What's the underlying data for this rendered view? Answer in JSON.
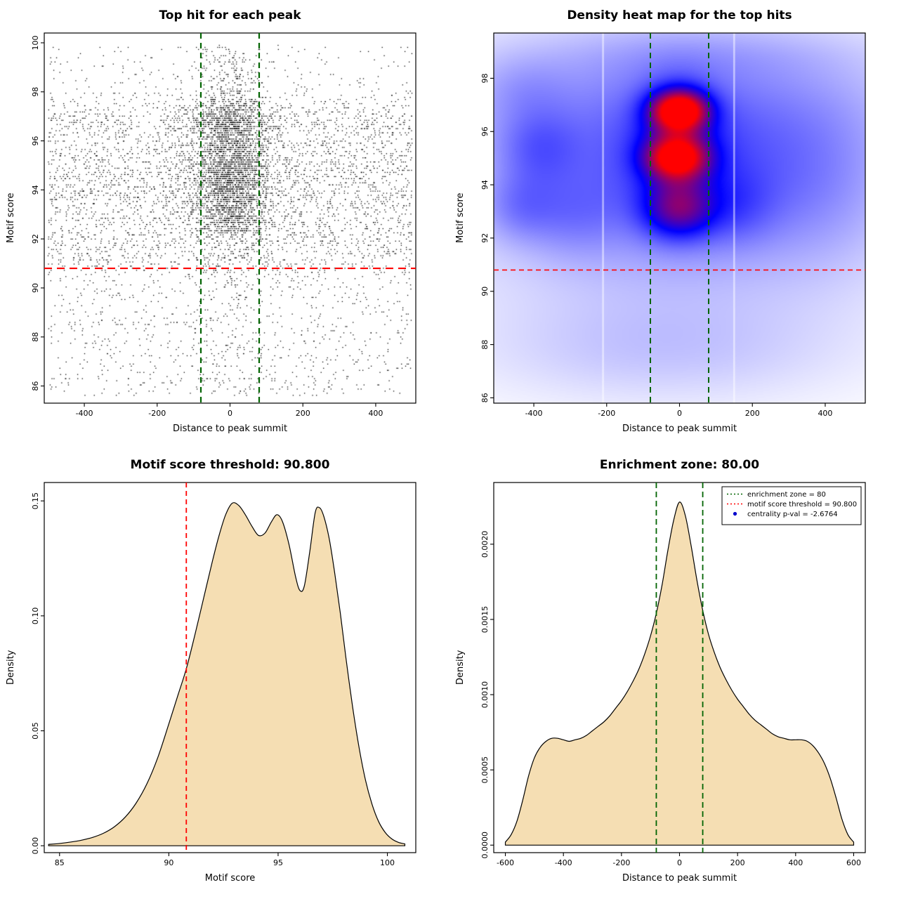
{
  "figure": {
    "background": "#FFFFFF"
  },
  "colors": {
    "threshold_red": "#FF0000",
    "zone_green": "#006400",
    "density_fill": "#F5DEB3",
    "point_black": "#000000",
    "pval_blue": "#0000CC"
  },
  "chart_data": [
    {
      "type": "scatter",
      "title": "Top hit for each peak",
      "xlabel": "Distance to peak summit",
      "ylabel": "Motif score",
      "xlim": [
        -510,
        510
      ],
      "ylim": [
        85.3,
        100.4
      ],
      "xticks": [
        -400,
        -200,
        0,
        200,
        400
      ],
      "xtick_labels": [
        "-400",
        "-200",
        "0",
        "200",
        "400"
      ],
      "yticks": [
        86,
        88,
        90,
        92,
        94,
        96,
        98,
        100
      ],
      "ytick_labels": [
        "86",
        "88",
        "90",
        "92",
        "94",
        "96",
        "98",
        "100"
      ],
      "hline": {
        "y": 90.8,
        "color": "#FF0000",
        "width": 2.2,
        "dash": "11,7"
      },
      "vlines": [
        {
          "x": -80,
          "color": "#006400",
          "width": 2.2,
          "dash": "8,6"
        },
        {
          "x": 80,
          "color": "#006400",
          "width": 2.2,
          "dash": "8,6"
        }
      ],
      "generator": {
        "seed": 20240613,
        "n": 8200,
        "score_modes": [
          {
            "type": "normal",
            "mu": 93.1,
            "sd": 1.25,
            "w": 0.3
          },
          {
            "type": "normal",
            "mu": 95.0,
            "sd": 0.85,
            "w": 0.24
          },
          {
            "type": "normal",
            "mu": 96.85,
            "sd": 0.55,
            "w": 0.16
          },
          {
            "type": "uniform",
            "lo": 85.6,
            "hi": 99.9,
            "w": 0.3
          }
        ],
        "score_range": [
          85.45,
          100.15
        ],
        "quant_step": 0.085,
        "central": {
          "sd": 57,
          "p_high": 0.5,
          "p_low": 0.15,
          "score_split": 92.3
        },
        "x_range": [
          -500,
          500
        ]
      }
    },
    {
      "type": "heatmap",
      "title": "Density heat map for the top hits",
      "xlabel": "Distance to peak summit",
      "ylabel": "Motif score",
      "xlim": [
        -510,
        510
      ],
      "ylim": [
        85.8,
        99.7
      ],
      "xticks": [
        -400,
        -200,
        0,
        200,
        400
      ],
      "xtick_labels": [
        "-400",
        "-200",
        "0",
        "200",
        "400"
      ],
      "yticks": [
        86,
        88,
        90,
        92,
        94,
        96,
        98
      ],
      "ytick_labels": [
        "86",
        "88",
        "90",
        "92",
        "94",
        "96",
        "98"
      ],
      "hline": {
        "y": 90.8,
        "color": "#FF0000",
        "width": 1.6,
        "dash": "7,5"
      },
      "vlines": [
        {
          "x": -80,
          "color": "#006400",
          "width": 2.0,
          "dash": "8,6"
        },
        {
          "x": 80,
          "color": "#006400",
          "width": 2.0,
          "dash": "8,6"
        }
      ],
      "colormap": [
        "#FFFFFF",
        "#0000FF",
        "#FF0000"
      ],
      "vmax": 1.15,
      "gamma": 0.85,
      "white_streaks": [
        -210,
        150
      ],
      "blobs": [
        {
          "x": 0,
          "y": 96.8,
          "sx": 52,
          "sy": 0.5,
          "w": 1.0
        },
        {
          "x": -8,
          "y": 95.0,
          "sx": 58,
          "sy": 0.55,
          "w": 0.8
        },
        {
          "x": -2,
          "y": 93.1,
          "sx": 66,
          "sy": 0.75,
          "w": 0.5
        },
        {
          "x": -4,
          "y": 95.9,
          "sx": 70,
          "sy": 1.3,
          "w": 0.3
        },
        {
          "x": 0,
          "y": 94.6,
          "sx": 200,
          "sy": 2.0,
          "w": 0.18
        },
        {
          "x": 0,
          "y": 94.0,
          "sx": 430,
          "sy": 3.4,
          "w": 0.16
        },
        {
          "x": 0,
          "y": 97.2,
          "sx": 430,
          "sy": 1.8,
          "w": 0.1
        },
        {
          "x": -390,
          "y": 95.4,
          "sx": 80,
          "sy": 1.0,
          "w": 0.16
        },
        {
          "x": -440,
          "y": 93.2,
          "sx": 70,
          "sy": 0.9,
          "w": 0.13
        },
        {
          "x": -300,
          "y": 92.9,
          "sx": 90,
          "sy": 1.1,
          "w": 0.1
        },
        {
          "x": 155,
          "y": 93.2,
          "sx": 75,
          "sy": 0.95,
          "w": 0.11
        },
        {
          "x": 380,
          "y": 94.3,
          "sx": 140,
          "sy": 2.2,
          "w": 0.09
        },
        {
          "x": -50,
          "y": 87.8,
          "sx": 320,
          "sy": 1.3,
          "w": 0.07
        },
        {
          "x": -430,
          "y": 97.6,
          "sx": 90,
          "sy": 0.9,
          "w": 0.07
        },
        {
          "x": 60,
          "y": 98.9,
          "sx": 280,
          "sy": 0.7,
          "w": 0.05
        }
      ]
    },
    {
      "type": "density",
      "title": "Motif score threshold: 90.800",
      "xlabel": "Motif score",
      "ylabel": "Density",
      "xlim": [
        84.3,
        101.3
      ],
      "ylim": [
        -0.003,
        0.158
      ],
      "xticks": [
        85,
        90,
        95,
        100
      ],
      "xtick_labels": [
        "85",
        "90",
        "95",
        "100"
      ],
      "yticks": [
        0,
        0.05,
        0.1,
        0.15
      ],
      "ytick_labels": [
        "0.00",
        "0.05",
        "0.10",
        "0.15"
      ],
      "fill": "#F5DEB3",
      "vlines": [
        {
          "x": 90.8,
          "color": "#FF0000",
          "width": 1.8,
          "dash": "7,5"
        }
      ],
      "curve": [
        [
          84.5,
          0.0006
        ],
        [
          85.0,
          0.001
        ],
        [
          85.5,
          0.0016
        ],
        [
          86.0,
          0.0024
        ],
        [
          86.5,
          0.0036
        ],
        [
          87.0,
          0.0054
        ],
        [
          87.5,
          0.0082
        ],
        [
          88.0,
          0.0124
        ],
        [
          88.5,
          0.0185
        ],
        [
          89.0,
          0.027
        ],
        [
          89.5,
          0.0385
        ],
        [
          90.0,
          0.053
        ],
        [
          90.4,
          0.065
        ],
        [
          90.8,
          0.077
        ],
        [
          91.2,
          0.092
        ],
        [
          91.6,
          0.108
        ],
        [
          92.0,
          0.124
        ],
        [
          92.3,
          0.135
        ],
        [
          92.6,
          0.144
        ],
        [
          92.9,
          0.149
        ],
        [
          93.2,
          0.148
        ],
        [
          93.5,
          0.144
        ],
        [
          93.8,
          0.139
        ],
        [
          94.1,
          0.135
        ],
        [
          94.4,
          0.136
        ],
        [
          94.7,
          0.141
        ],
        [
          94.95,
          0.144
        ],
        [
          95.2,
          0.141
        ],
        [
          95.5,
          0.131
        ],
        [
          95.8,
          0.117
        ],
        [
          96.0,
          0.111
        ],
        [
          96.2,
          0.113
        ],
        [
          96.45,
          0.128
        ],
        [
          96.7,
          0.145
        ],
        [
          96.9,
          0.147
        ],
        [
          97.1,
          0.143
        ],
        [
          97.35,
          0.133
        ],
        [
          97.6,
          0.118
        ],
        [
          97.85,
          0.101
        ],
        [
          98.1,
          0.082
        ],
        [
          98.4,
          0.061
        ],
        [
          98.7,
          0.043
        ],
        [
          99.0,
          0.0285
        ],
        [
          99.3,
          0.018
        ],
        [
          99.6,
          0.0105
        ],
        [
          99.9,
          0.0058
        ],
        [
          100.2,
          0.003
        ],
        [
          100.5,
          0.0015
        ],
        [
          100.8,
          0.0008
        ]
      ]
    },
    {
      "type": "density",
      "title": "Enrichment zone: 80.00",
      "xlabel": "Distance to peak summit",
      "ylabel": "Density",
      "xlim": [
        -640,
        640
      ],
      "ylim": [
        -5e-05,
        0.00241
      ],
      "xticks": [
        -600,
        -400,
        -200,
        0,
        200,
        400,
        600
      ],
      "xtick_labels": [
        "-600",
        "-400",
        "-200",
        "0",
        "200",
        "400",
        "600"
      ],
      "yticks": [
        0,
        0.0005,
        0.001,
        0.0015,
        0.002
      ],
      "ytick_labels": [
        "0.0000",
        "0.0005",
        "0.0010",
        "0.0015",
        "0.0020"
      ],
      "fill": "#F5DEB3",
      "vlines": [
        {
          "x": -80,
          "color": "#006400",
          "width": 1.8,
          "dash": "8,5"
        },
        {
          "x": 80,
          "color": "#006400",
          "width": 1.8,
          "dash": "8,5"
        }
      ],
      "legend": {
        "items": [
          {
            "label": "enrichment zone = 80",
            "kind": "line",
            "color": "#006400"
          },
          {
            "label": "motif score threshold = 90.800",
            "kind": "line",
            "color": "#FF0000"
          },
          {
            "label": "centrality p-val = -2.6764",
            "kind": "point",
            "color": "#0000CC"
          }
        ]
      },
      "curve": [
        [
          -600,
          2e-05
        ],
        [
          -580,
          7e-05
        ],
        [
          -560,
          0.00016
        ],
        [
          -540,
          0.0003
        ],
        [
          -520,
          0.00046
        ],
        [
          -500,
          0.00058
        ],
        [
          -480,
          0.00065
        ],
        [
          -460,
          0.00069
        ],
        [
          -440,
          0.00071
        ],
        [
          -420,
          0.00071
        ],
        [
          -400,
          0.0007
        ],
        [
          -380,
          0.00069
        ],
        [
          -360,
          0.0007
        ],
        [
          -340,
          0.00071
        ],
        [
          -320,
          0.00073
        ],
        [
          -300,
          0.00076
        ],
        [
          -280,
          0.00079
        ],
        [
          -260,
          0.00082
        ],
        [
          -240,
          0.00086
        ],
        [
          -220,
          0.00091
        ],
        [
          -200,
          0.00096
        ],
        [
          -180,
          0.00102
        ],
        [
          -160,
          0.00109
        ],
        [
          -140,
          0.00117
        ],
        [
          -120,
          0.00127
        ],
        [
          -100,
          0.00139
        ],
        [
          -80,
          0.00154
        ],
        [
          -60,
          0.00173
        ],
        [
          -40,
          0.00196
        ],
        [
          -20,
          0.00216
        ],
        [
          0,
          0.00228
        ],
        [
          20,
          0.00219
        ],
        [
          40,
          0.00199
        ],
        [
          60,
          0.00176
        ],
        [
          80,
          0.00156
        ],
        [
          100,
          0.0014
        ],
        [
          120,
          0.00128
        ],
        [
          140,
          0.00118
        ],
        [
          160,
          0.0011
        ],
        [
          180,
          0.00103
        ],
        [
          200,
          0.00097
        ],
        [
          220,
          0.00092
        ],
        [
          240,
          0.00087
        ],
        [
          260,
          0.00083
        ],
        [
          280,
          0.0008
        ],
        [
          300,
          0.00077
        ],
        [
          320,
          0.00074
        ],
        [
          340,
          0.00072
        ],
        [
          360,
          0.00071
        ],
        [
          380,
          0.0007
        ],
        [
          400,
          0.0007
        ],
        [
          420,
          0.0007
        ],
        [
          440,
          0.00069
        ],
        [
          460,
          0.00066
        ],
        [
          480,
          0.00061
        ],
        [
          500,
          0.00054
        ],
        [
          520,
          0.00044
        ],
        [
          540,
          0.00031
        ],
        [
          560,
          0.00017
        ],
        [
          580,
          7e-05
        ],
        [
          600,
          2e-05
        ]
      ]
    }
  ]
}
